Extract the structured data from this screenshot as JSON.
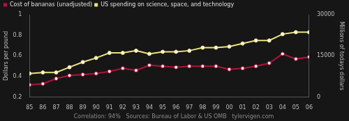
{
  "chart_data": {
    "type": "line",
    "categories": [
      "85",
      "86",
      "87",
      "88",
      "89",
      "90",
      "91",
      "92",
      "93",
      "94",
      "95",
      "96",
      "97",
      "98",
      "99",
      "00",
      "01",
      "02",
      "03",
      "04",
      "05",
      "06"
    ],
    "series": [
      {
        "name": "Cost of bananas (unadjusted)",
        "color": "#b3123c",
        "axis": "y",
        "marker": "circle",
        "line_style": "solid",
        "values": [
          0.32,
          0.33,
          0.38,
          0.41,
          0.42,
          0.43,
          0.45,
          0.48,
          0.46,
          0.51,
          0.5,
          0.49,
          0.5,
          0.5,
          0.5,
          0.47,
          0.48,
          0.5,
          0.53,
          0.62,
          0.57,
          0.59
        ]
      },
      {
        "name": "US spending on science, space, and technology",
        "color": "#ede27a",
        "axis": "y2",
        "marker": "circle",
        "line_style": "solid",
        "values": [
          8600,
          9000,
          9000,
          10900,
          12750,
          14250,
          16100,
          16100,
          16900,
          15750,
          16500,
          16500,
          16900,
          18000,
          18000,
          18400,
          19500,
          20600,
          20600,
          22900,
          23600,
          23600
        ]
      }
    ],
    "ylabel": "Dollars per pound",
    "y2label": "Millions of todays dollars",
    "ylim": [
      0.2,
      1
    ],
    "yticks": [
      0.2,
      0.4,
      0.6,
      0.8,
      1
    ],
    "y2lim": [
      0,
      30000
    ],
    "y2ticks": [
      0,
      15000,
      30000
    ],
    "annotations": [
      "Correlation: 94%   Sources: Bureau of Labor & US OMB   tylervigen.com"
    ],
    "legend": "top-left",
    "grid": false
  }
}
